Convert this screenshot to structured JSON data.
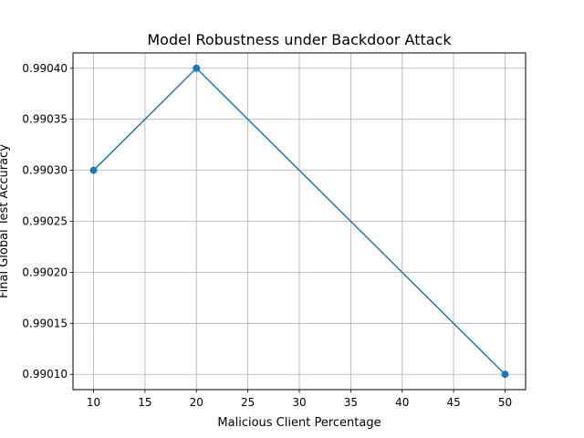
{
  "chart_data": {
    "type": "line",
    "title": "Model Robustness under Backdoor Attack",
    "xlabel": "Malicious Client Percentage",
    "ylabel": "Final Global Test Accuracy",
    "x": [
      10,
      20,
      50
    ],
    "series": [
      {
        "values": [
          0.9903,
          0.9904,
          0.9901
        ],
        "color": "#1f77b4",
        "marker": "circle"
      }
    ],
    "xlim": [
      8,
      52
    ],
    "ylim": [
      0.990085,
      0.990415
    ],
    "xticks": [
      10,
      15,
      20,
      25,
      30,
      35,
      40,
      45,
      50
    ],
    "yticks": [
      0.9901,
      0.99015,
      0.9902,
      0.99025,
      0.9903,
      0.99035,
      0.9904
    ],
    "ytick_labels": [
      "0.99010",
      "0.99015",
      "0.99020",
      "0.99025",
      "0.99030",
      "0.99035",
      "0.99040"
    ],
    "grid": true,
    "legend": "none"
  }
}
